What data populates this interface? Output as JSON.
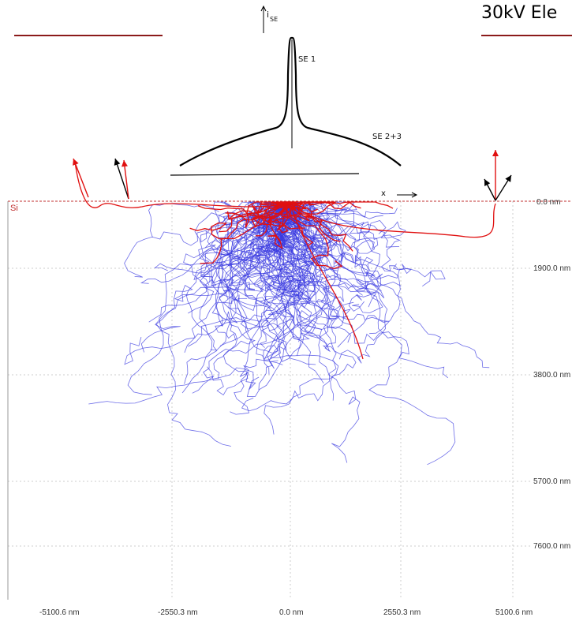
{
  "slide": {
    "title": "30kV Ele",
    "material_label": "Si"
  },
  "inset": {
    "y_axis_label": "i",
    "y_axis_subscript": "SE",
    "peak_label": "SE 1",
    "tail_label": "SE 2+3",
    "x_axis_label": "x"
  },
  "plot": {
    "y_axis": {
      "unit": "nm",
      "ticks": [
        "0.0 nm",
        "1900.0 nm",
        "3800.0 nm",
        "5700.0 nm",
        "7600.0 nm"
      ]
    },
    "x_axis": {
      "unit": "nm",
      "ticks": [
        "-5100.6 nm",
        "-2550.3 nm",
        "0.0 nm",
        "2550.3 nm",
        "5100.6 nm"
      ]
    },
    "series": [
      {
        "name": "primary_electrons",
        "color": "#3a3ae0"
      },
      {
        "name": "secondary_escape",
        "color": "#e01010"
      }
    ],
    "escape_arrow_colors": [
      "#e01010",
      "#000000"
    ]
  }
}
